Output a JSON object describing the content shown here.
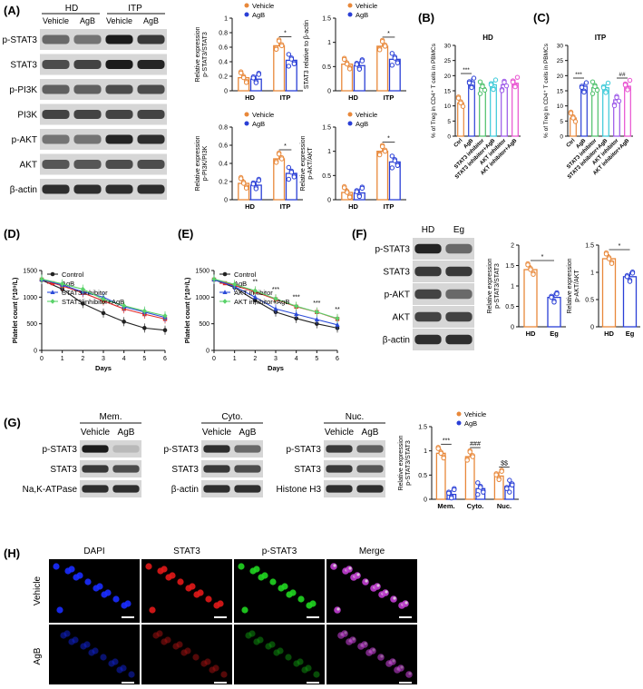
{
  "panels": {
    "A": "(A)",
    "B": "(B)",
    "C": "(C)",
    "D": "(D)",
    "E": "(E)",
    "F": "(F)",
    "G": "(G)",
    "H": "(H)"
  },
  "colors": {
    "vehicle": "#e8883a",
    "agb": "#2a3fd6",
    "control": "#222222",
    "stat3_inhibitor": "#2b4bd8",
    "combo": "#5ad26a",
    "ctrl_b": "#e8883a",
    "agb_b": "#2a3fd6",
    "inhib_b": "#4cc06a",
    "combo_b": "#39c9d8",
    "akt_b": "#9a55e8",
    "aktcombo_b": "#e84fd0"
  },
  "blotA": {
    "groups": [
      "HD",
      "ITP"
    ],
    "lanes": [
      "Vehicle",
      "AgB",
      "Vehicle",
      "AgB"
    ],
    "rows": [
      "p-STAT3",
      "STAT3",
      "p-PI3K",
      "PI3K",
      "p-AKT",
      "AKT",
      "β-actin"
    ]
  },
  "blotF": {
    "lanes": [
      "HD",
      "Eg"
    ],
    "rows": [
      "p-STAT3",
      "STAT3",
      "p-AKT",
      "AKT",
      "β-actin"
    ]
  },
  "blotG": [
    {
      "title": "Mem.",
      "lanes": [
        "Vehicle",
        "AgB"
      ],
      "rows": [
        "p-STAT3",
        "STAT3",
        "Na,K-ATPase"
      ]
    },
    {
      "title": "Cyto.",
      "lanes": [
        "Vehicle",
        "AgB"
      ],
      "rows": [
        "p-STAT3",
        "STAT3",
        "β-actin"
      ]
    },
    {
      "title": "Nuc.",
      "lanes": [
        "Vehicle",
        "AgB"
      ],
      "rows": [
        "p-STAT3",
        "STAT3",
        "Histone H3"
      ]
    }
  ],
  "panelH": {
    "columns": [
      "DAPI",
      "STAT3",
      "p-STAT3",
      "Merge"
    ],
    "rows": [
      "Vehicle",
      "AgB"
    ]
  },
  "chart_data": [
    {
      "id": "A1",
      "type": "bar",
      "categories": [
        "HD",
        "ITP"
      ],
      "ylabel": "Relative expression p-STAT3/STAT3",
      "ylim": [
        0,
        1.0
      ],
      "yticks": [
        0,
        0.2,
        0.4,
        0.6,
        0.8,
        1.0
      ],
      "series": [
        {
          "name": "Vehicle",
          "values": [
            0.18,
            0.62
          ]
        },
        {
          "name": "AgB",
          "values": [
            0.16,
            0.42
          ]
        }
      ],
      "significance": [
        "",
        "*"
      ]
    },
    {
      "id": "A2",
      "type": "bar",
      "categories": [
        "HD",
        "ITP"
      ],
      "ylabel": "STAT3 relative to β-actin",
      "ylim": [
        0,
        1.5
      ],
      "yticks": [
        0.0,
        0.5,
        1.0,
        1.5
      ],
      "series": [
        {
          "name": "Vehicle",
          "values": [
            0.55,
            0.92
          ]
        },
        {
          "name": "AgB",
          "values": [
            0.52,
            0.65
          ]
        }
      ],
      "significance": [
        "",
        "*"
      ]
    },
    {
      "id": "A3",
      "type": "bar",
      "categories": [
        "HD",
        "ITP"
      ],
      "ylabel": "Relative expression p-PI3K/PI3K",
      "ylim": [
        0,
        0.8
      ],
      "yticks": [
        0.0,
        0.2,
        0.4,
        0.6,
        0.8
      ],
      "series": [
        {
          "name": "Vehicle",
          "values": [
            0.18,
            0.45
          ]
        },
        {
          "name": "AgB",
          "values": [
            0.16,
            0.29
          ]
        }
      ],
      "significance": [
        "",
        "*"
      ]
    },
    {
      "id": "A4",
      "type": "bar",
      "categories": [
        "HD",
        "ITP"
      ],
      "ylabel": "Relative expression p-AKT/AKT",
      "ylim": [
        0,
        1.5
      ],
      "yticks": [
        0.0,
        0.5,
        1.0,
        1.5
      ],
      "series": [
        {
          "name": "Vehicle",
          "values": [
            0.15,
            1.0
          ]
        },
        {
          "name": "AgB",
          "values": [
            0.14,
            0.78
          ]
        }
      ],
      "significance": [
        "",
        "*"
      ]
    },
    {
      "id": "B",
      "type": "bar",
      "title": "HD",
      "categories": [
        "Ctrl",
        "AgB",
        "STAT3 inhibitor",
        "STAT3 inhibitor+AgB",
        "AKT inhibitor",
        "AKT inhibitor+AgB"
      ],
      "ylabel": "% of Treg in CD4⁺ T cells in PBMCs",
      "ylim": [
        0,
        30
      ],
      "yticks": [
        0,
        5,
        10,
        15,
        20,
        25,
        30
      ],
      "values": [
        11,
        18,
        16,
        17,
        17,
        17.5
      ],
      "significance": [
        "***",
        ""
      ]
    },
    {
      "id": "C",
      "type": "bar",
      "title": "ITP",
      "categories": [
        "Ctrl",
        "AgB",
        "STAT3 inhibitor",
        "STAT3 inhibitor+AgB",
        "AKT inhibitor",
        "AKT inhibitor+AgB"
      ],
      "ylabel": "% of Treg in CD4⁺ T cells in PBMCs",
      "ylim": [
        0,
        30
      ],
      "yticks": [
        0,
        5,
        10,
        15,
        20,
        25,
        30
      ],
      "values": [
        6,
        16.5,
        16,
        16,
        12,
        16.5
      ],
      "significance": [
        "***",
        "##"
      ]
    },
    {
      "id": "D",
      "type": "line",
      "x": [
        0,
        1,
        2,
        3,
        4,
        5,
        6
      ],
      "xlabel": "Days",
      "ylabel": "Platelet count (*10⁹/L)",
      "ylim": [
        0,
        1500
      ],
      "yticks": [
        0,
        500,
        1000,
        1500
      ],
      "series": [
        {
          "name": "Control",
          "values": [
            1320,
            1150,
            880,
            700,
            540,
            420,
            380
          ]
        },
        {
          "name": "AgB",
          "values": [
            1330,
            1210,
            1080,
            930,
            780,
            680,
            590
          ]
        },
        {
          "name": "STAT3 inhibitor",
          "values": [
            1330,
            1230,
            1100,
            1000,
            820,
            720,
            620
          ]
        },
        {
          "name": "STAT3 inhibitor+AgB",
          "values": [
            1340,
            1250,
            1150,
            960,
            840,
            740,
            650
          ]
        }
      ]
    },
    {
      "id": "E",
      "type": "line",
      "x": [
        0,
        1,
        2,
        3,
        4,
        5,
        6
      ],
      "xlabel": "Days",
      "ylabel": "Platelet count (*10⁹/L)",
      "ylim": [
        0,
        1500
      ],
      "yticks": [
        0,
        500,
        1000,
        1500
      ],
      "series": [
        {
          "name": "Control",
          "values": [
            1330,
            1180,
            940,
            720,
            600,
            500,
            420
          ]
        },
        {
          "name": "AgB",
          "values": [
            1330,
            1220,
            1100,
            960,
            820,
            720,
            590
          ]
        },
        {
          "name": "AKT inhibitor",
          "values": [
            1330,
            1200,
            1000,
            780,
            680,
            580,
            480
          ]
        },
        {
          "name": "AKT inhibitor+AgB",
          "values": [
            1340,
            1240,
            1120,
            970,
            830,
            720,
            600
          ]
        }
      ],
      "annotations": [
        "",
        "",
        "**",
        "***",
        "***",
        "***",
        "**"
      ]
    },
    {
      "id": "F1",
      "type": "bar",
      "categories": [
        "HD",
        "Eg"
      ],
      "ylabel": "Relative expression p-STAT3/STAT3",
      "ylim": [
        0,
        2.0
      ],
      "yticks": [
        0.0,
        0.5,
        1.0,
        1.5,
        2.0
      ],
      "values": [
        1.4,
        0.72
      ],
      "significance": "*"
    },
    {
      "id": "F2",
      "type": "bar",
      "categories": [
        "HD",
        "Eg"
      ],
      "ylabel": "Relative expression p-AKT/AKT",
      "ylim": [
        0,
        1.5
      ],
      "yticks": [
        0.0,
        0.5,
        1.0,
        1.5
      ],
      "values": [
        1.25,
        0.92
      ],
      "significance": "*"
    },
    {
      "id": "G",
      "type": "bar",
      "categories": [
        "Mem.",
        "Cyto.",
        "Nuc."
      ],
      "ylabel": "Relative expression p-STAT3/STAT3",
      "ylim": [
        0,
        1.5
      ],
      "yticks": [
        0.0,
        0.5,
        1.0,
        1.5
      ],
      "series": [
        {
          "name": "Vehicle",
          "values": [
            0.95,
            0.88,
            0.48
          ]
        },
        {
          "name": "AgB",
          "values": [
            0.1,
            0.22,
            0.27
          ]
        }
      ],
      "significance": [
        "***",
        "###",
        "$$"
      ]
    }
  ]
}
